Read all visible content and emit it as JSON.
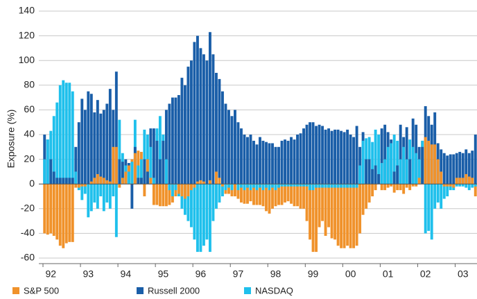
{
  "chart_data": {
    "type": "bar",
    "ylabel": "Exposure (%)",
    "categories": [
      null,
      null,
      "92",
      null,
      null,
      null,
      null,
      null,
      null,
      null,
      null,
      null,
      null,
      null,
      "93",
      null,
      null,
      null,
      null,
      null,
      null,
      null,
      null,
      null,
      null,
      null,
      "94",
      null,
      null,
      null,
      null,
      null,
      null,
      null,
      null,
      null,
      null,
      null,
      "95",
      null,
      null,
      null,
      null,
      null,
      null,
      null,
      null,
      null,
      null,
      null,
      "96",
      null,
      null,
      null,
      null,
      null,
      null,
      null,
      null,
      null,
      null,
      null,
      "97",
      null,
      null,
      null,
      null,
      null,
      null,
      null,
      null,
      null,
      null,
      null,
      "98",
      null,
      null,
      null,
      null,
      null,
      null,
      null,
      null,
      null,
      null,
      null,
      "99",
      null,
      null,
      null,
      null,
      null,
      null,
      null,
      null,
      null,
      null,
      null,
      "00",
      null,
      null,
      null,
      null,
      null,
      null,
      null,
      null,
      null,
      null,
      null,
      "01",
      null,
      null,
      null,
      null,
      null,
      null,
      null,
      null,
      null,
      null,
      null,
      "02",
      null,
      null,
      null,
      null,
      null,
      null,
      null,
      null,
      null,
      null,
      null,
      "03",
      null,
      null,
      null,
      null
    ],
    "series": [
      {
        "name": "S&P 500",
        "color": "#f0922b",
        "values": [
          -40,
          -41,
          -40,
          -42,
          -45,
          -50,
          -52,
          -48,
          -47,
          -47,
          -3,
          -3,
          -2,
          -2,
          0,
          2,
          5,
          8,
          6,
          5,
          3,
          2,
          30,
          30,
          -3,
          5,
          10,
          15,
          20,
          25,
          27,
          26,
          -10,
          20,
          5,
          -17,
          -17,
          -18,
          -18,
          -18,
          -17,
          -15,
          -10,
          -8,
          -10,
          -12,
          -10,
          -5,
          -3,
          2,
          3,
          2,
          0,
          3,
          0,
          10,
          5,
          -2,
          -8,
          -8,
          -10,
          -10,
          -12,
          -15,
          -16,
          -16,
          -14,
          -17,
          -17,
          -17,
          -18,
          -22,
          -24,
          -20,
          -18,
          -17,
          -17,
          -15,
          -14,
          -16,
          -18,
          -18,
          -20,
          -20,
          -30,
          -45,
          -55,
          -55,
          -35,
          -30,
          -42,
          -35,
          -44,
          -45,
          -50,
          -52,
          -52,
          -50,
          -52,
          -52,
          -50,
          -40,
          -25,
          -20,
          -15,
          -10,
          -5,
          0,
          -5,
          -5,
          -3,
          -2,
          -7,
          -5,
          -5,
          -8,
          -3,
          -5,
          -2,
          -2,
          5,
          35,
          38,
          35,
          32,
          32,
          20,
          10,
          -2,
          -2,
          -2,
          -3,
          5,
          5,
          5,
          8,
          6,
          5,
          -10
        ]
      },
      {
        "name": "Russell 2000",
        "color": "#1a5ea8",
        "values": [
          40,
          36,
          20,
          10,
          5,
          5,
          5,
          5,
          5,
          5,
          30,
          50,
          69,
          60,
          75,
          73,
          58,
          68,
          57,
          60,
          65,
          77,
          60,
          91,
          20,
          18,
          20,
          17,
          -20,
          30,
          5,
          5,
          20,
          10,
          45,
          45,
          35,
          20,
          35,
          60,
          65,
          70,
          70,
          72,
          86,
          80,
          95,
          100,
          115,
          120,
          110,
          105,
          100,
          123,
          105,
          90,
          85,
          75,
          65,
          60,
          55,
          60,
          50,
          45,
          40,
          38,
          40,
          35,
          32,
          38,
          35,
          34,
          33,
          33,
          30,
          30,
          35,
          36,
          35,
          38,
          36,
          40,
          41,
          45,
          48,
          50,
          50,
          47,
          48,
          47,
          44,
          45,
          43,
          44,
          44,
          43,
          42,
          44,
          40,
          38,
          47,
          30,
          42,
          20,
          20,
          12,
          15,
          8,
          45,
          48,
          42,
          36,
          10,
          15,
          48,
          38,
          46,
          20,
          53,
          48,
          30,
          30,
          63,
          55,
          48,
          58,
          33,
          28,
          25,
          23,
          24,
          24,
          25,
          26,
          25,
          28,
          25,
          27,
          40
        ]
      },
      {
        "name": "NASDAQ",
        "color": "#1fc0ec",
        "values": [
          20,
          36,
          43,
          55,
          66,
          80,
          84,
          82,
          82,
          75,
          10,
          -5,
          -13,
          -8,
          -27,
          -22,
          -15,
          -20,
          -10,
          -22,
          -15,
          -20,
          -10,
          -43,
          52,
          25,
          15,
          10,
          18,
          52,
          15,
          20,
          44,
          40,
          30,
          5,
          45,
          55,
          40,
          20,
          -5,
          -10,
          -5,
          -10,
          -20,
          -25,
          -30,
          -35,
          -45,
          -55,
          -55,
          -50,
          -45,
          -55,
          -30,
          -20,
          -15,
          -10,
          -5,
          -3,
          -5,
          0,
          -5,
          -3,
          -5,
          -3,
          -5,
          -3,
          -5,
          -3,
          -5,
          -3,
          -5,
          -3,
          -5,
          -3,
          -2,
          -2,
          -2,
          -2,
          -2,
          -2,
          -2,
          -2,
          -2,
          -5,
          -5,
          -3,
          -3,
          -3,
          -3,
          -3,
          -3,
          -3,
          -3,
          -3,
          -3,
          -3,
          -3,
          -3,
          -3,
          15,
          35,
          37,
          38,
          34,
          44,
          40,
          17,
          20,
          30,
          33,
          40,
          35,
          20,
          30,
          20,
          36,
          30,
          25,
          20,
          35,
          -40,
          -38,
          -45,
          -20,
          -15,
          -20,
          -12,
          -10,
          -5,
          -5,
          -2,
          -2,
          -2,
          -3,
          -5,
          -3,
          -2
        ]
      }
    ],
    "ylim": [
      -60,
      140
    ],
    "yticks": [
      -60,
      -40,
      -20,
      0,
      20,
      40,
      60,
      80,
      100,
      120,
      140
    ],
    "grid": true
  }
}
